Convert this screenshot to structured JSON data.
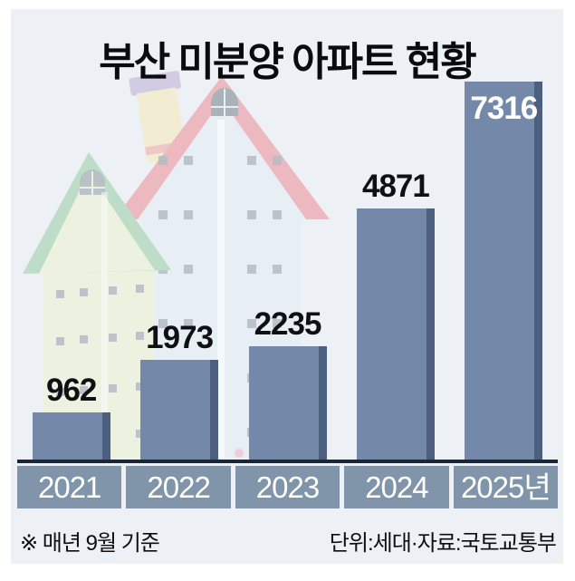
{
  "title": "부산 미분양 아파트 현황",
  "chart_data": {
    "type": "bar",
    "title": "부산 미분양 아파트 현황",
    "categories": [
      "2021",
      "2022",
      "2023",
      "2024",
      "2025년"
    ],
    "values": [
      962,
      1973,
      2235,
      4871,
      7316
    ],
    "value_labels": [
      "962",
      "1973",
      "2235",
      "4871",
      "7316"
    ],
    "value_label_placement": [
      "above",
      "above",
      "above",
      "above",
      "inside"
    ],
    "ylim": [
      0,
      7316
    ],
    "xlabel": "",
    "ylabel": "",
    "grid": "off",
    "legend": "none",
    "note": "※ 매년 9월 기준",
    "unit_source": "단위:세대·자료:국토교통부"
  },
  "footer": {
    "note": "※ 매년 9월 기준",
    "unit_source": "단위:세대·자료:국토교통부"
  },
  "colors": {
    "page_bg": "#ffffff",
    "panel_bg": "#edf1f5",
    "bar": "#7489aa",
    "bar_shadow": "#4d5f7e",
    "axis_line": "#1d2734",
    "tick_box": "#8094aa",
    "tick_text": "#ffffff",
    "value_text": "#101014",
    "value_inside": "#ffffff"
  },
  "illustration": {
    "items": [
      "green-house-icon",
      "pink-roof-house-icon"
    ]
  }
}
